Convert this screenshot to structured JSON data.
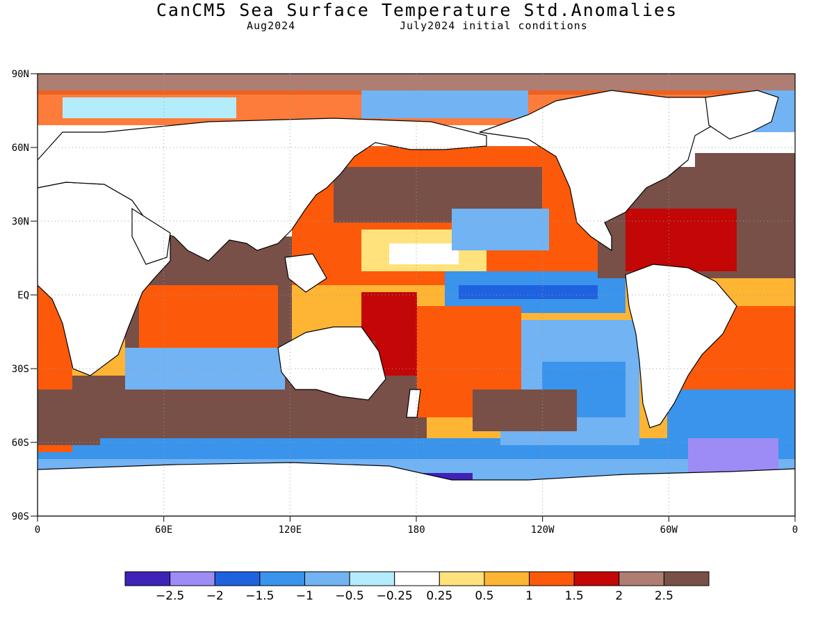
{
  "title": "CanCM5 Sea Surface Temperature Std.Anomalies",
  "subtitle_left": "Aug2024",
  "subtitle_right": "July2024 initial conditions",
  "lat_labels": [
    "90N",
    "60N",
    "30N",
    "EQ",
    "30S",
    "60S",
    "90S"
  ],
  "lat_values": [
    90,
    60,
    30,
    0,
    -30,
    -60,
    -90
  ],
  "lon_labels": [
    "0",
    "60E",
    "120E",
    "180",
    "120W",
    "60W",
    "0"
  ],
  "lon_values": [
    0,
    60,
    120,
    180,
    240,
    300,
    360
  ],
  "colorbar": {
    "colors": [
      "#3f22b7",
      "#9d8cf5",
      "#1f62e0",
      "#3a94ec",
      "#72b3f3",
      "#b4ecfb",
      "#ffffff",
      "#ffe27c",
      "#ffb534",
      "#fc5a0a",
      "#c30606",
      "#ae7e73",
      "#785047"
    ],
    "labels": [
      "-2.5",
      "-2",
      "-1.5",
      "-1",
      "-0.5",
      "-0.25",
      "0.25",
      "0.5",
      "1",
      "1.5",
      "2",
      "2.5"
    ]
  }
}
